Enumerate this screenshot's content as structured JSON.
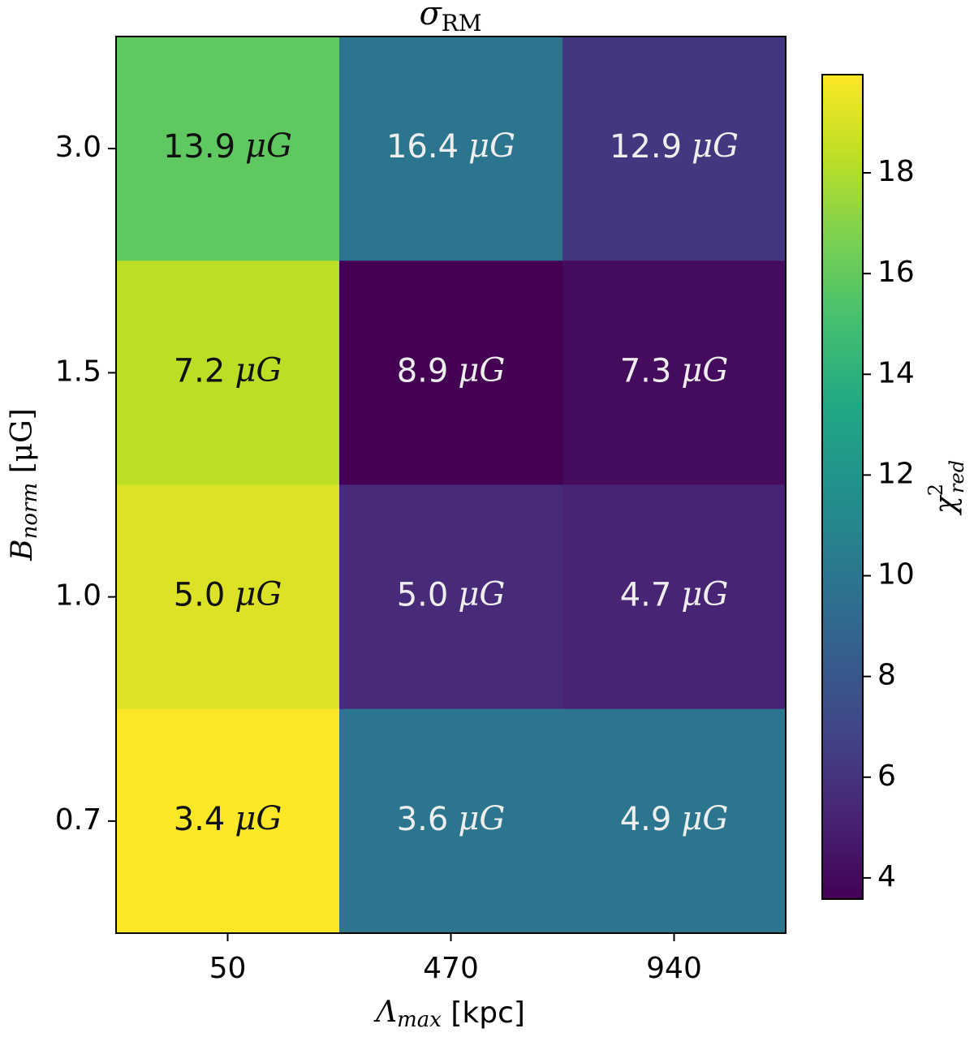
{
  "chart_data": {
    "type": "heatmap",
    "title": {
      "symbol": "σ",
      "sub": "RM"
    },
    "xlabel": {
      "symbol": "Λ",
      "sub": "max",
      "rest": " [kpc]"
    },
    "ylabel": {
      "symbol": "B",
      "sub": "norm",
      "rest": " [μG]"
    },
    "x_categories": [
      "50",
      "470",
      "940"
    ],
    "y_categories": [
      "3.0",
      "1.5",
      "1.0",
      "0.7"
    ],
    "values": [
      [
        15.9,
        10.0,
        6.2
      ],
      [
        18.3,
        3.6,
        4.1
      ],
      [
        19.1,
        5.5,
        5.2
      ],
      [
        19.9,
        10.0,
        10.0
      ]
    ],
    "cell_labels": [
      [
        {
          "num": "13.9",
          "unit": "μG"
        },
        {
          "num": "16.4",
          "unit": "μG"
        },
        {
          "num": "12.9",
          "unit": "μG"
        }
      ],
      [
        {
          "num": "7.2",
          "unit": "μG"
        },
        {
          "num": "8.9",
          "unit": "μG"
        },
        {
          "num": "7.3",
          "unit": "μG"
        }
      ],
      [
        {
          "num": "5.0",
          "unit": "μG"
        },
        {
          "num": "5.0",
          "unit": "μG"
        },
        {
          "num": "4.7",
          "unit": "μG"
        }
      ],
      [
        {
          "num": "3.4",
          "unit": "μG"
        },
        {
          "num": "3.6",
          "unit": "μG"
        },
        {
          "num": "4.9",
          "unit": "μG"
        }
      ]
    ],
    "colormap": "viridis",
    "clim": [
      3.58,
      19.95
    ],
    "colorbar_ticks": [
      4,
      6,
      8,
      10,
      12,
      14,
      16,
      18
    ],
    "colorbar_label": {
      "symbol": "χ",
      "sup": "2",
      "sub": "red"
    }
  }
}
